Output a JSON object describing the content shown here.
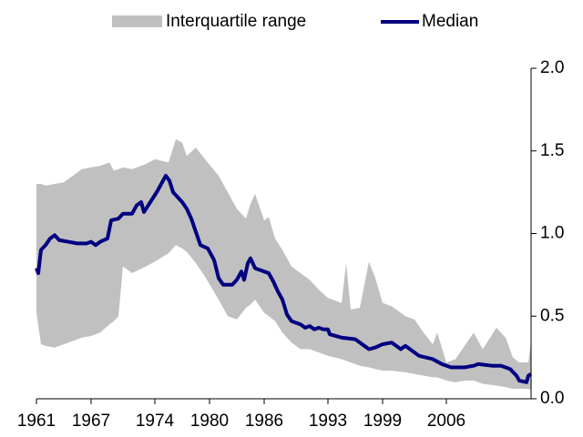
{
  "chart_data": {
    "type": "line",
    "series": [
      {
        "name": "Interquartile range",
        "color": "#c0c0c0",
        "x": [
          1961,
          1961.5,
          1962,
          1963,
          1964,
          1965,
          1966,
          1967,
          1968,
          1969,
          1969.5,
          1970,
          1970.5,
          1971.5,
          1973,
          1974,
          1975.5,
          1976.3,
          1977,
          1977.5,
          1978.5,
          1979.5,
          1981,
          1982,
          1983,
          1984,
          1984.5,
          1985,
          1986,
          1986.5,
          1987.2,
          1988,
          1989,
          1990,
          1991,
          1992,
          1993,
          1994.5,
          1995,
          1995.5,
          1996.5,
          1997.5,
          1998.2,
          1999,
          2000,
          2001.5,
          2002.5,
          2003.5,
          2004.5,
          2005,
          2006,
          2007,
          2008,
          2009,
          2010,
          2011.5,
          2012.5,
          2013.3,
          2014,
          2015,
          2015.3
        ],
        "upper": [
          1.3,
          1.3,
          1.29,
          1.3,
          1.31,
          1.35,
          1.39,
          1.4,
          1.41,
          1.43,
          1.38,
          1.39,
          1.4,
          1.39,
          1.42,
          1.45,
          1.43,
          1.57,
          1.55,
          1.47,
          1.52,
          1.45,
          1.35,
          1.25,
          1.15,
          1.09,
          1.18,
          1.24,
          1.08,
          1.1,
          0.97,
          0.9,
          0.8,
          0.76,
          0.72,
          0.66,
          0.61,
          0.58,
          0.82,
          0.54,
          0.55,
          0.83,
          0.73,
          0.58,
          0.56,
          0.5,
          0.48,
          0.4,
          0.33,
          0.4,
          0.22,
          0.24,
          0.32,
          0.4,
          0.3,
          0.43,
          0.37,
          0.25,
          0.22,
          0.22,
          0.35
        ],
        "lower": [
          0.52,
          0.33,
          0.32,
          0.31,
          0.33,
          0.35,
          0.37,
          0.38,
          0.4,
          0.45,
          0.47,
          0.5,
          0.8,
          0.76,
          0.8,
          0.83,
          0.88,
          0.93,
          0.91,
          0.89,
          0.82,
          0.74,
          0.6,
          0.5,
          0.48,
          0.55,
          0.57,
          0.6,
          0.52,
          0.5,
          0.47,
          0.4,
          0.34,
          0.3,
          0.3,
          0.28,
          0.26,
          0.24,
          0.23,
          0.22,
          0.2,
          0.19,
          0.18,
          0.17,
          0.17,
          0.16,
          0.15,
          0.14,
          0.13,
          0.13,
          0.11,
          0.1,
          0.11,
          0.11,
          0.09,
          0.08,
          0.07,
          0.06,
          0.06,
          0.06,
          0.05
        ]
      },
      {
        "name": "Median",
        "color": "#000080",
        "x": [
          1961.0,
          1961.2,
          1961.5,
          1962.0,
          1962.5,
          1963.0,
          1963.5,
          1964.5,
          1965.5,
          1966.5,
          1967.0,
          1967.5,
          1968.0,
          1968.8,
          1969.2,
          1970.0,
          1970.5,
          1971.5,
          1972.0,
          1972.5,
          1972.8,
          1973.5,
          1974.2,
          1974.8,
          1975.2,
          1975.6,
          1976.0,
          1976.5,
          1977.0,
          1977.5,
          1978.0,
          1978.5,
          1979.0,
          1979.8,
          1980.5,
          1981.0,
          1981.5,
          1982.5,
          1983.0,
          1983.5,
          1983.8,
          1984.2,
          1984.5,
          1985.0,
          1986.0,
          1986.5,
          1987.0,
          1987.5,
          1988.0,
          1988.5,
          1989.0,
          1990.0,
          1990.5,
          1991.0,
          1991.5,
          1992.0,
          1992.5,
          1993.0,
          1993.2,
          1994.5,
          1996.0,
          1996.5,
          1997.5,
          1998.2,
          1999.0,
          2000.0,
          2001.0,
          2001.5,
          2002.0,
          2003.0,
          2004.5,
          2005.5,
          2006.5,
          2008.0,
          2009.0,
          2009.5,
          2011.0,
          2012.0,
          2013.0,
          2013.7,
          2014.0,
          2014.8,
          2015.0,
          2015.3
        ],
        "values": [
          0.79,
          0.76,
          0.9,
          0.93,
          0.97,
          0.99,
          0.96,
          0.95,
          0.94,
          0.94,
          0.95,
          0.93,
          0.95,
          0.97,
          1.08,
          1.09,
          1.12,
          1.12,
          1.17,
          1.19,
          1.13,
          1.19,
          1.25,
          1.31,
          1.35,
          1.32,
          1.25,
          1.22,
          1.19,
          1.15,
          1.09,
          1.01,
          0.93,
          0.91,
          0.84,
          0.73,
          0.69,
          0.69,
          0.72,
          0.77,
          0.72,
          0.82,
          0.85,
          0.79,
          0.77,
          0.76,
          0.71,
          0.65,
          0.6,
          0.51,
          0.47,
          0.45,
          0.43,
          0.44,
          0.42,
          0.43,
          0.42,
          0.42,
          0.39,
          0.37,
          0.36,
          0.34,
          0.3,
          0.31,
          0.33,
          0.34,
          0.3,
          0.32,
          0.3,
          0.26,
          0.24,
          0.21,
          0.19,
          0.19,
          0.2,
          0.21,
          0.2,
          0.2,
          0.18,
          0.14,
          0.11,
          0.1,
          0.14,
          0.15
        ]
      }
    ],
    "xlim": [
      1961,
      2015.3
    ],
    "xticks": [
      1961,
      1967,
      1974,
      1980,
      1986,
      1993,
      1999,
      2006
    ],
    "ylim": [
      0,
      2
    ],
    "yticks": [
      {
        "value": 0,
        "label": "0.0"
      },
      0.5,
      {
        "value": 1,
        "label": "1.0"
      },
      1.5,
      {
        "value": 2,
        "label": "2.0"
      }
    ],
    "y_axis_side": "right"
  }
}
